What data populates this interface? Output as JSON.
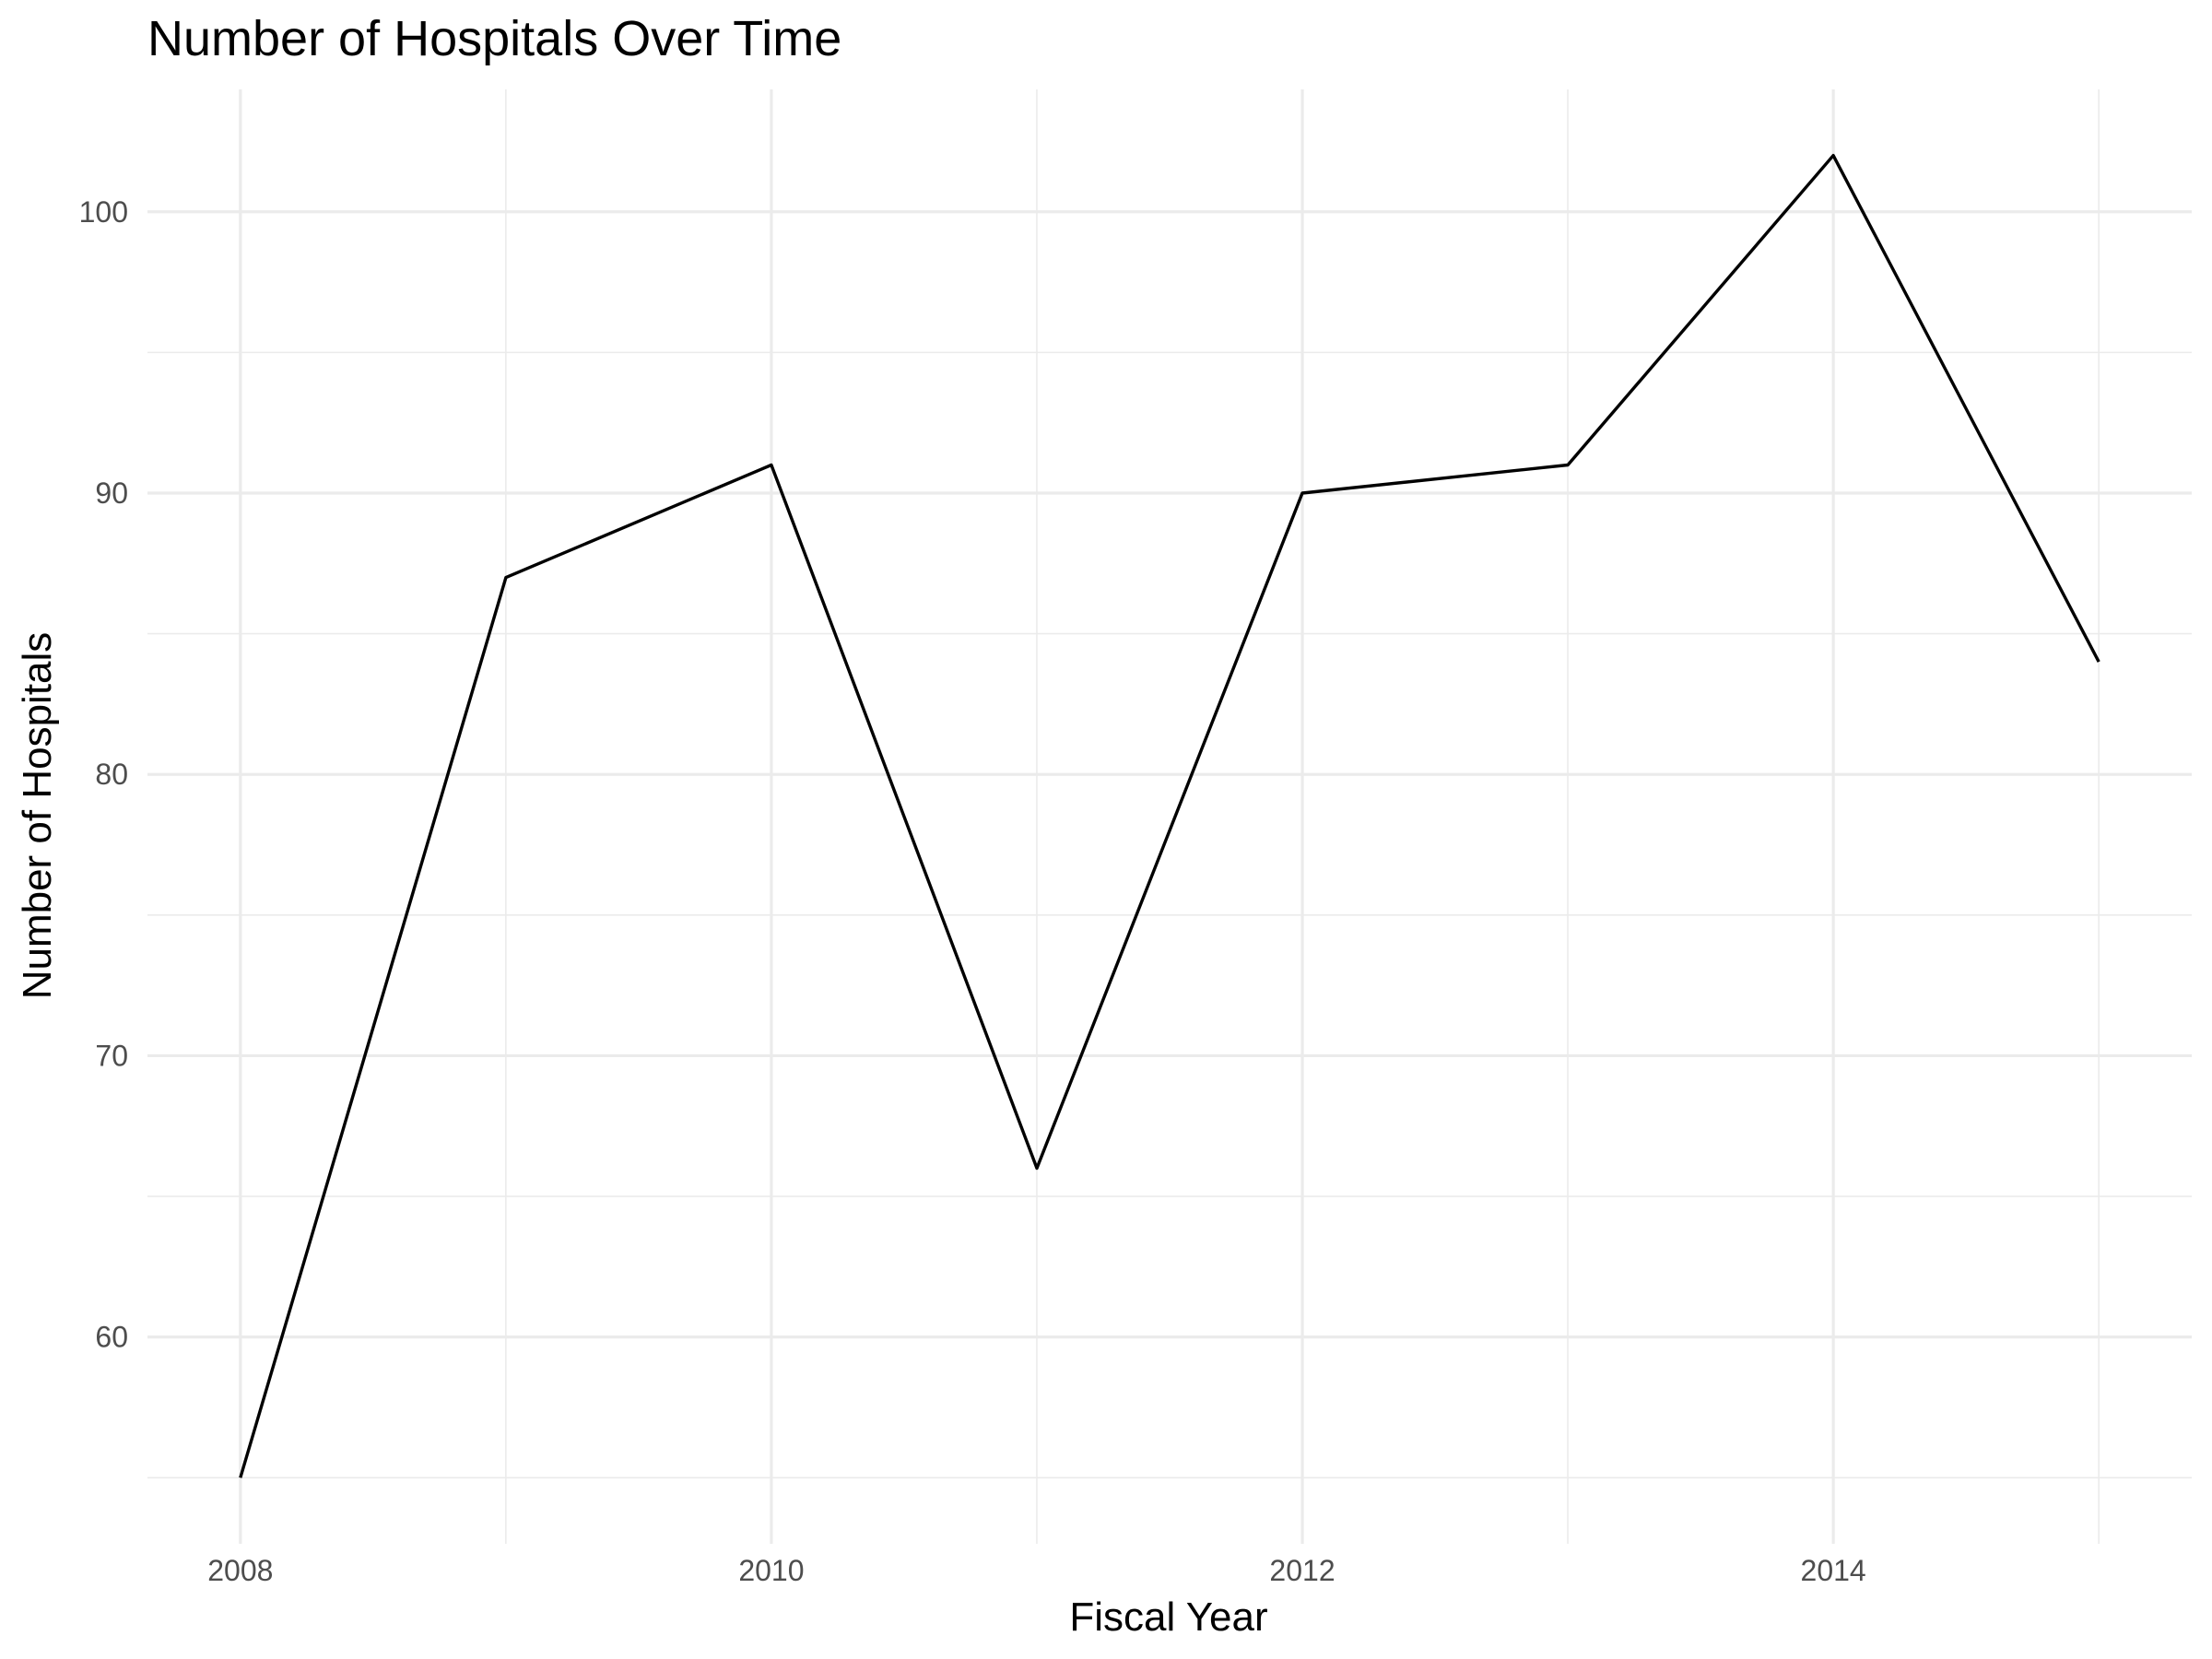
{
  "chart_data": {
    "type": "line",
    "title": "Number of Hospitals Over Time",
    "xlabel": "Fiscal Year",
    "ylabel": "Number of Hospitals",
    "x": [
      2008,
      2009,
      2010,
      2011,
      2012,
      2013,
      2014,
      2015
    ],
    "y": [
      55,
      87,
      91,
      66,
      90,
      91,
      102,
      84
    ],
    "xlim": [
      2007.65,
      2015.35
    ],
    "ylim": [
      52.65,
      104.35
    ],
    "x_ticks": [
      2008,
      2010,
      2012,
      2014
    ],
    "x_tick_labels": [
      "2008",
      "2010",
      "2012",
      "2014"
    ],
    "y_ticks": [
      60,
      70,
      80,
      90,
      100
    ],
    "y_tick_labels": [
      "60",
      "70",
      "80",
      "90",
      "100"
    ],
    "grid": true,
    "legend": "none",
    "line_color": "#000000"
  }
}
